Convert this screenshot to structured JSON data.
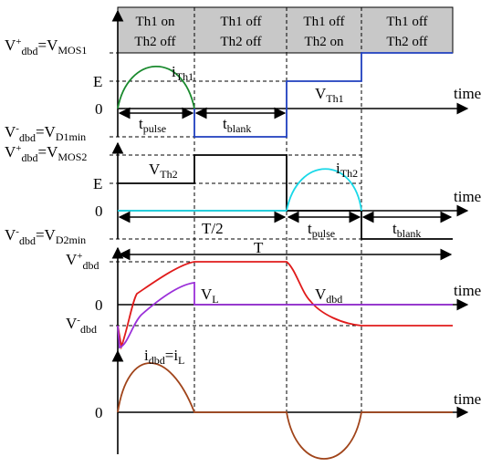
{
  "header": {
    "phases": [
      {
        "line1": "Th1 on",
        "line2": "Th2 off"
      },
      {
        "line1": "Th1 off",
        "line2": "Th2 off"
      },
      {
        "line1": "Th1 off",
        "line2": "Th2 on"
      },
      {
        "line1": "Th1 off",
        "line2": "Th2 off"
      }
    ]
  },
  "panel1": {
    "vmos1_label": {
      "a": "V",
      "a_sup": "+",
      "a_sub": "dbd",
      "b": "=V",
      "b_sub": "MOS1"
    },
    "e_label": "E",
    "zero_label": "0",
    "vd1min_label": {
      "a": "V",
      "a_sup": "-",
      "a_sub": "dbd",
      "b": "=V",
      "b_sub": "D1min"
    },
    "time_label": "time",
    "ith1": {
      "main": "i",
      "sub": "Th1"
    },
    "vth1": {
      "main": "V",
      "sub": "Th1"
    },
    "tpulse": {
      "main": "t",
      "sub": "pulse"
    },
    "tblank": {
      "main": "t",
      "sub": "blank"
    },
    "colors": {
      "ith1": "#1a8a2e",
      "vth1": "#1f3fbf"
    }
  },
  "panel2": {
    "vmos2_label": {
      "a": "V",
      "a_sup": "+",
      "a_sub": "dbd",
      "b": "=V",
      "b_sub": "MOS2"
    },
    "e_label": "E",
    "zero_label": "0",
    "vd2min_label": {
      "a": "V",
      "a_sup": "-",
      "a_sub": "dbd",
      "b": "=V",
      "b_sub": "D2min"
    },
    "time_label": "time",
    "vth2": {
      "main": "V",
      "sub": "Th2"
    },
    "ith2": {
      "main": "i",
      "sub": "Th2"
    },
    "half_period": "T/2",
    "tpulse": {
      "main": "t",
      "sub": "pulse"
    },
    "tblank": {
      "main": "t",
      "sub": "blank"
    },
    "colors": {
      "ith2": "#19d8e8",
      "vth2": "#000000"
    }
  },
  "panel3": {
    "period": "T",
    "vplus_label": {
      "a": "V",
      "a_sup": "+",
      "a_sub": "dbd"
    },
    "zero_label": "0",
    "vminus_label": {
      "a": "V",
      "a_sup": "-",
      "a_sub": "dbd"
    },
    "time_label": "time",
    "vl": {
      "main": "V",
      "sub": "L"
    },
    "vdbd": {
      "main": "V",
      "sub": "dbd"
    },
    "colors": {
      "vl": "#9b30d9",
      "vdbd": "#e01b1b"
    }
  },
  "panel4": {
    "idbd": {
      "a": "i",
      "a_sub": "dbd",
      "b": "=i",
      "b_sub": "L"
    },
    "zero_label": "0",
    "time_label": "time",
    "colors": {
      "idbd": "#a0441a"
    }
  }
}
